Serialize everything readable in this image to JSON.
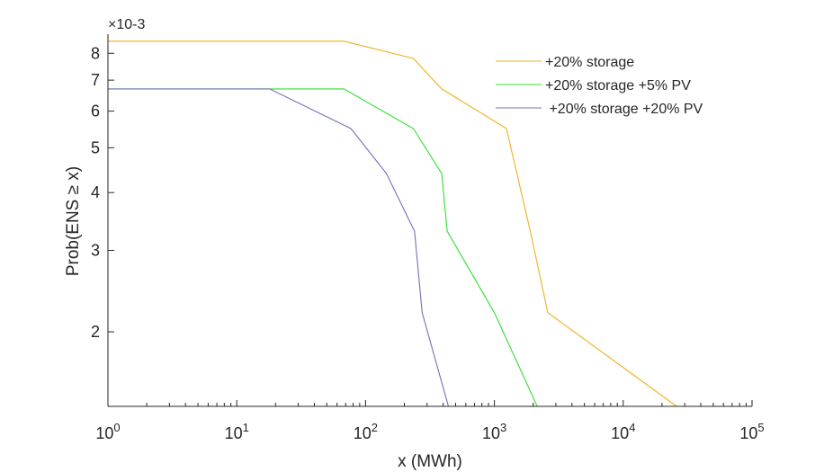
{
  "chart_data": {
    "type": "line",
    "title": "",
    "xlabel": "x (MWh)",
    "ylabel": "Prob(ENS ≥ x)",
    "xscale": "log",
    "yscale": "log",
    "xlim": [
      1,
      100000
    ],
    "ylim": [
      0.00138,
      0.0088
    ],
    "y_exponent_label": "×10-3",
    "x_ticks": [
      {
        "value": 1,
        "base": "10",
        "exp": "0"
      },
      {
        "value": 10,
        "base": "10",
        "exp": "1"
      },
      {
        "value": 100,
        "base": "10",
        "exp": "2"
      },
      {
        "value": 1000,
        "base": "10",
        "exp": "3"
      },
      {
        "value": 10000,
        "base": "10",
        "exp": "4"
      },
      {
        "value": 100000,
        "base": "10",
        "exp": "5"
      }
    ],
    "y_ticks": [
      {
        "value": 0.002,
        "label": "2"
      },
      {
        "value": 0.003,
        "label": "3"
      },
      {
        "value": 0.004,
        "label": "4"
      },
      {
        "value": 0.005,
        "label": "5"
      },
      {
        "value": 0.006,
        "label": "6"
      },
      {
        "value": 0.007,
        "label": "7"
      },
      {
        "value": 0.008,
        "label": "8"
      }
    ],
    "grid": false,
    "legend_position": "top-right",
    "series": [
      {
        "name": "+20% storage",
        "color": "#f0b020",
        "x": [
          1,
          68,
          235,
          390,
          1240,
          1900,
          2600,
          26000
        ],
        "y": [
          0.0085,
          0.0085,
          0.0078,
          0.0067,
          0.0055,
          0.0033,
          0.0022,
          0.00138
        ]
      },
      {
        "name": "+20% storage +5% PV",
        "color": "#33dd33",
        "x": [
          1,
          68,
          235,
          390,
          430,
          1000,
          2150
        ],
        "y": [
          0.0067,
          0.0067,
          0.0055,
          0.0044,
          0.0033,
          0.0022,
          0.00138
        ]
      },
      {
        "name": " +20% storage +20% PV",
        "color": "#7070bb",
        "x": [
          1,
          18,
          77,
          145,
          240,
          275,
          440
        ],
        "y": [
          0.0067,
          0.0067,
          0.0055,
          0.0044,
          0.0033,
          0.0022,
          0.00138
        ]
      }
    ]
  }
}
